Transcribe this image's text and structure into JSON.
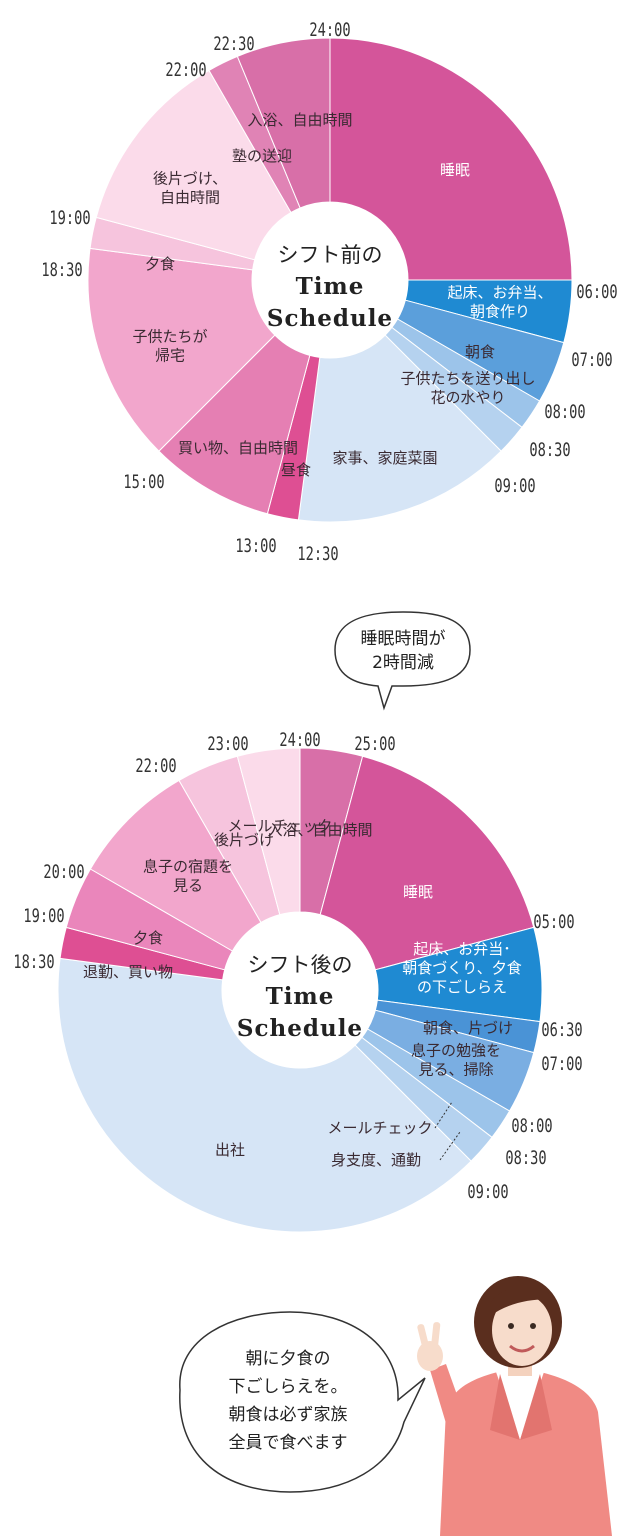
{
  "colors": {
    "sleep": "#d4559a",
    "evening_bath": "#d86fa8",
    "pink_mid": "#e57fb3",
    "pink_light": "#f2a6cc",
    "pink_lighter": "#f6c4dd",
    "pink_pale": "#fbdbea",
    "lunch": "#de4f93",
    "morning_blue": "#1f8ad2",
    "blue_mid": "#5b9fdb",
    "blue_light": "#9cc4ea",
    "blue_pale": "#c2d9f2",
    "blue_palest": "#d6e5f6"
  },
  "before": {
    "title_line": "シフト前の",
    "title_word1": "Time",
    "title_word2": "Schedule",
    "times": [
      "24:00",
      "06:00",
      "07:00",
      "08:00",
      "08:30",
      "09:00",
      "12:30",
      "13:00",
      "15:00",
      "18:30",
      "19:00",
      "22:00",
      "22:30"
    ],
    "segments": [
      {
        "start": 0,
        "end": 6,
        "label": [
          "睡眠"
        ],
        "color": "#d4559a"
      },
      {
        "start": 6,
        "end": 7,
        "label": [
          "起床、お弁当、",
          "朝食作り"
        ],
        "color": "#1f8ad2"
      },
      {
        "start": 7,
        "end": 8,
        "label": [
          "朝食"
        ],
        "color": "#5b9fdb"
      },
      {
        "start": 8,
        "end": 8.5,
        "label": [
          "子供たちを送り出し",
          "花の水やり"
        ],
        "color": "#9cc4ea"
      },
      {
        "start": 8.5,
        "end": 9,
        "label": [],
        "color": "#b5d2ef"
      },
      {
        "start": 9,
        "end": 12.5,
        "label": [
          "家事、家庭菜園"
        ],
        "color": "#d6e5f6"
      },
      {
        "start": 12.5,
        "end": 13,
        "label": [
          "昼食"
        ],
        "color": "#de4f93"
      },
      {
        "start": 13,
        "end": 15,
        "label": [
          "買い物、自由時間"
        ],
        "color": "#e57fb3"
      },
      {
        "start": 15,
        "end": 18.5,
        "label": [
          "子供たちが",
          "帰宅"
        ],
        "color": "#f2a6cc"
      },
      {
        "start": 18.5,
        "end": 19,
        "label": [
          "夕食"
        ],
        "color": "#f6c4dd"
      },
      {
        "start": 19,
        "end": 22,
        "label": [
          "後片づけ、",
          "自由時間"
        ],
        "color": "#fbdbea"
      },
      {
        "start": 22,
        "end": 22.5,
        "label": [
          "塾の送迎"
        ],
        "color": "#e083b5"
      },
      {
        "start": 22.5,
        "end": 24,
        "label": [
          "入浴、自由時間"
        ],
        "color": "#d86fa8"
      }
    ]
  },
  "after": {
    "bubble": [
      "睡眠時間が",
      "2時間減"
    ],
    "title_line": "シフト後の",
    "title_word1": "Time",
    "title_word2": "Schedule",
    "times": [
      "23:00",
      "24:00",
      "25:00",
      "05:00",
      "06:30",
      "07:00",
      "08:00",
      "08:30",
      "09:00",
      "18:30",
      "19:00",
      "20:00",
      "22:00"
    ],
    "segments": [
      {
        "start": 0,
        "end": 1,
        "label": [
          "入浴、自由時間"
        ],
        "color": "#d86fa8"
      },
      {
        "start": 1,
        "end": 5,
        "label": [
          "睡眠"
        ],
        "color": "#d4559a"
      },
      {
        "start": 5,
        "end": 6.5,
        "label": [
          "起床、お弁当･",
          "朝食づくり、夕食",
          "の下ごしらえ"
        ],
        "color": "#1f8ad2"
      },
      {
        "start": 6.5,
        "end": 7,
        "label": [
          "朝食、片づけ"
        ],
        "color": "#4a93d6"
      },
      {
        "start": 7,
        "end": 8,
        "label": [
          "息子の勉強を",
          "見る、掃除"
        ],
        "color": "#7aaee2"
      },
      {
        "start": 8,
        "end": 8.5,
        "label": [
          "メールチェック"
        ],
        "color": "#9cc4ea"
      },
      {
        "start": 8.5,
        "end": 9,
        "label": [
          "身支度、通勤"
        ],
        "color": "#b5d2ef"
      },
      {
        "start": 9,
        "end": 18.5,
        "label": [
          "出社"
        ],
        "color": "#d6e5f6"
      },
      {
        "start": 18.5,
        "end": 19,
        "label": [
          "退勤、買い物"
        ],
        "color": "#de4f93"
      },
      {
        "start": 19,
        "end": 20,
        "label": [
          "夕食"
        ],
        "color": "#ea86bb"
      },
      {
        "start": 20,
        "end": 22,
        "label": [
          "息子の宿題を",
          "見る"
        ],
        "color": "#f2a6cc"
      },
      {
        "start": 22,
        "end": 23,
        "label": [
          "後片づけ"
        ],
        "color": "#f6c4dd"
      },
      {
        "start": 23,
        "end": 24,
        "label": [
          "メールチェック"
        ],
        "color": "#fbdbea"
      }
    ]
  },
  "comment": {
    "lines": [
      "朝に夕食の",
      "下ごしらえを。",
      "朝食は必ず家族",
      "全員で食べます"
    ]
  }
}
